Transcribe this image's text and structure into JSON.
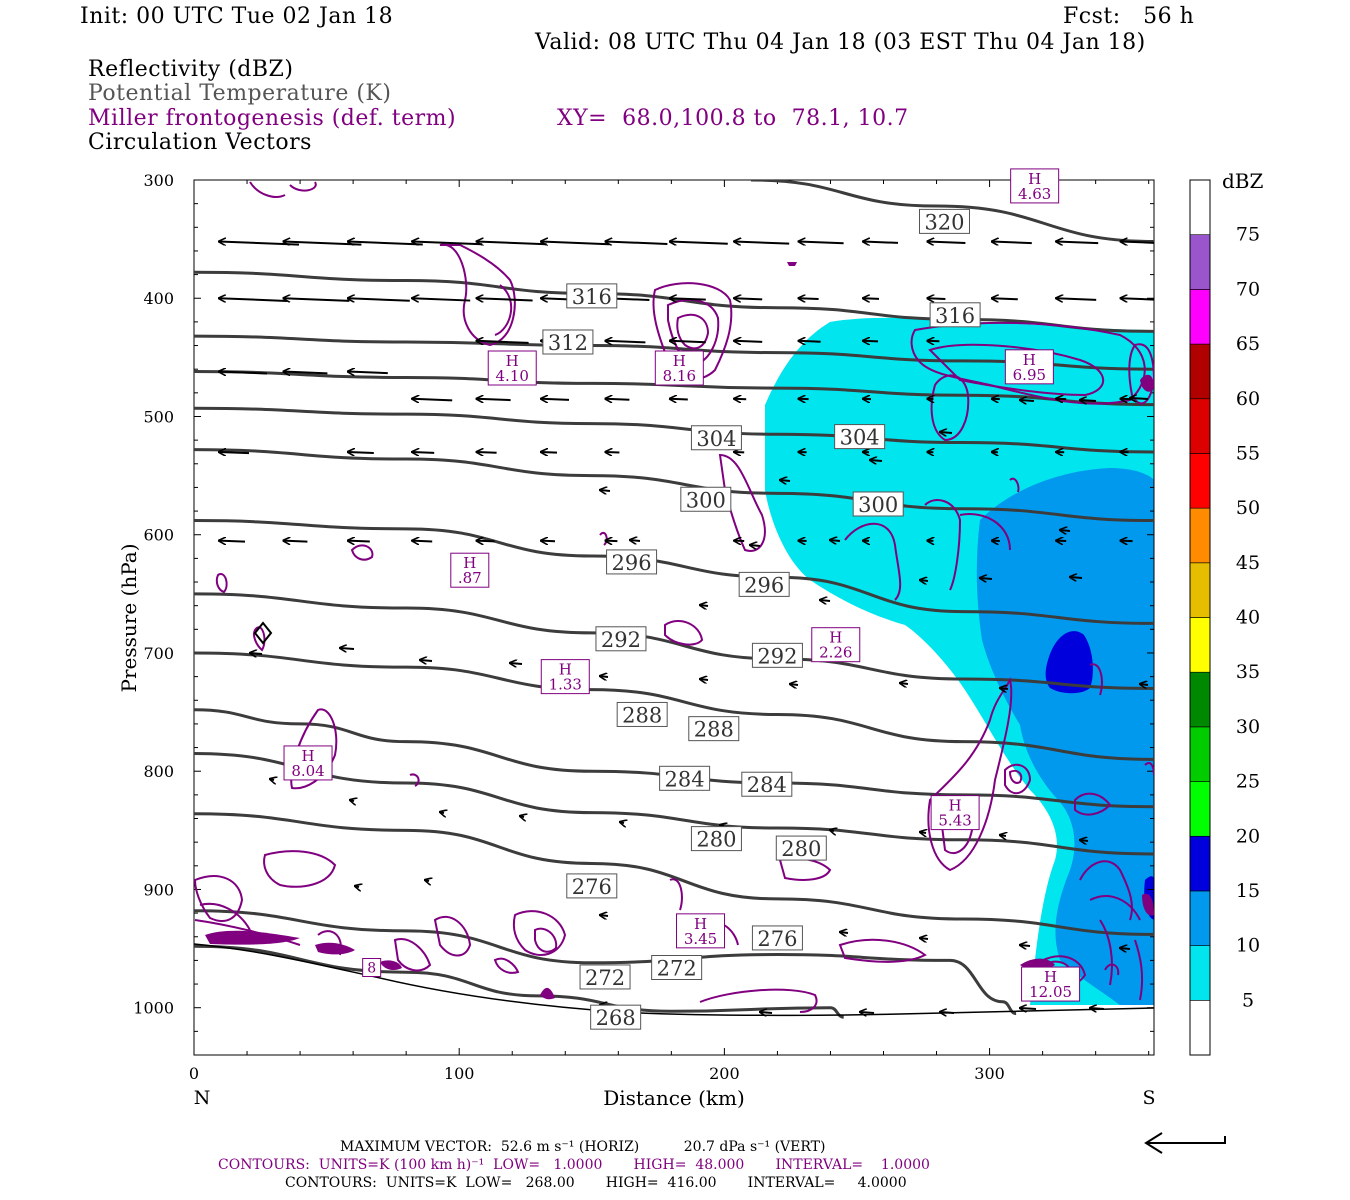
{
  "header": {
    "init": "Init: 00 UTC Tue 02 Jan 18",
    "fcst": "Fcst:   56 h",
    "valid": "Valid: 08 UTC Thu 04 Jan 18 (03 EST Thu 04 Jan 18)"
  },
  "legend_text": {
    "reflectivity": "Reflectivity (dBZ)",
    "theta": "Potential Temperature (K)",
    "miller": "Miller frontogenesis (def. term)",
    "xy": "XY=  68.0,100.8 to  78.1, 10.7",
    "circulation": "Circulation Vectors"
  },
  "colors": {
    "purple": "#800080",
    "gray_text": "#555555",
    "theta_line": "#3c3c3c",
    "refl_5": "#00E5EE",
    "refl_10": "#0099EE",
    "refl_15": "#0000DD"
  },
  "chart_data": {
    "type": "cross-section",
    "xlabel": "Distance (km)",
    "ylabel": "Pressure (hPa)",
    "xlim": [
      0,
      362
    ],
    "ylim": [
      1040,
      300
    ],
    "x_ticks": [
      0,
      100,
      200,
      300
    ],
    "y_ticks": [
      300,
      400,
      500,
      600,
      700,
      800,
      900,
      1000
    ],
    "left_end_label": "N",
    "right_end_label": "S",
    "colorbar": {
      "title": "dBZ",
      "levels": [
        5,
        10,
        15,
        20,
        25,
        30,
        35,
        40,
        45,
        50,
        55,
        60,
        65,
        70,
        75
      ],
      "colors": [
        "#ffffff",
        "#00E5EE",
        "#0099EE",
        "#0000DD",
        "#00FF00",
        "#00CC00",
        "#008800",
        "#FFFF00",
        "#E5BE00",
        "#FF8C00",
        "#FF0000",
        "#DD0000",
        "#B00000",
        "#FF00FF",
        "#9955CC",
        "#ffffff"
      ]
    },
    "theta_label_values": [
      "320",
      "316",
      "316",
      "312",
      "304",
      "304",
      "300",
      "300",
      "296",
      "296",
      "292",
      "292",
      "288",
      "288",
      "284",
      "284",
      "280",
      "280",
      "276",
      "276",
      "272",
      "272",
      "268"
    ],
    "theta_contours": [
      {
        "theta": 320,
        "points": [
          [
            210,
            300
          ],
          [
            280,
            322
          ],
          [
            362,
            352
          ]
        ]
      },
      {
        "theta": 316,
        "points": [
          [
            0,
            378
          ],
          [
            80,
            385
          ],
          [
            150,
            396
          ],
          [
            220,
            408
          ],
          [
            290,
            418
          ],
          [
            362,
            428
          ]
        ]
      },
      {
        "theta": 312,
        "points": [
          [
            0,
            432
          ],
          [
            80,
            437
          ],
          [
            150,
            440
          ],
          [
            220,
            446
          ],
          [
            290,
            453
          ],
          [
            362,
            460
          ]
        ]
      },
      {
        "theta": 308,
        "points": [
          [
            0,
            462
          ],
          [
            80,
            467
          ],
          [
            150,
            472
          ],
          [
            220,
            476
          ],
          [
            290,
            482
          ],
          [
            362,
            490
          ]
        ]
      },
      {
        "theta": 304,
        "points": [
          [
            0,
            493
          ],
          [
            80,
            498
          ],
          [
            150,
            506
          ],
          [
            220,
            515
          ],
          [
            290,
            522
          ],
          [
            362,
            530
          ]
        ]
      },
      {
        "theta": 300,
        "points": [
          [
            0,
            528
          ],
          [
            80,
            536
          ],
          [
            150,
            550
          ],
          [
            220,
            565
          ],
          [
            290,
            578
          ],
          [
            362,
            588
          ]
        ]
      },
      {
        "theta": 296,
        "points": [
          [
            0,
            588
          ],
          [
            80,
            595
          ],
          [
            150,
            618
          ],
          [
            220,
            636
          ],
          [
            290,
            665
          ],
          [
            362,
            675
          ]
        ]
      },
      {
        "theta": 292,
        "points": [
          [
            0,
            650
          ],
          [
            80,
            662
          ],
          [
            150,
            683
          ],
          [
            220,
            705
          ],
          [
            290,
            722
          ],
          [
            362,
            730
          ]
        ]
      },
      {
        "theta": 288,
        "points": [
          [
            0,
            700
          ],
          [
            80,
            712
          ],
          [
            150,
            731
          ],
          [
            220,
            752
          ],
          [
            290,
            775
          ],
          [
            362,
            790
          ]
        ]
      },
      {
        "theta": 284,
        "points": [
          [
            0,
            748
          ],
          [
            40,
            760
          ],
          [
            80,
            775
          ],
          [
            150,
            800
          ],
          [
            220,
            810
          ],
          [
            290,
            820
          ],
          [
            362,
            830
          ]
        ]
      },
      {
        "theta": 280,
        "points": [
          [
            0,
            785
          ],
          [
            80,
            810
          ],
          [
            150,
            835
          ],
          [
            220,
            848
          ],
          [
            290,
            858
          ],
          [
            362,
            870
          ]
        ]
      },
      {
        "theta": 276,
        "points": [
          [
            0,
            836
          ],
          [
            80,
            850
          ],
          [
            150,
            878
          ],
          [
            220,
            908
          ],
          [
            290,
            925
          ],
          [
            362,
            938
          ]
        ]
      },
      {
        "theta": 272,
        "points": [
          [
            0,
            918
          ],
          [
            80,
            935
          ],
          [
            150,
            962
          ],
          [
            220,
            955
          ],
          [
            285,
            960
          ],
          [
            305,
            995
          ],
          [
            310,
            1005
          ]
        ]
      },
      {
        "theta": 268,
        "points": [
          [
            0,
            948
          ],
          [
            80,
            970
          ],
          [
            130,
            990
          ],
          [
            180,
            1003
          ],
          [
            240,
            1000
          ],
          [
            245,
            1008
          ]
        ]
      }
    ],
    "theta_labels": [
      {
        "text": "320",
        "x": 283,
        "p": 335
      },
      {
        "text": "316",
        "x": 150,
        "p": 398
      },
      {
        "text": "316",
        "x": 287,
        "p": 414
      },
      {
        "text": "312",
        "x": 141,
        "p": 437
      },
      {
        "text": "304",
        "x": 197,
        "p": 518
      },
      {
        "text": "304",
        "x": 251,
        "p": 517
      },
      {
        "text": "300",
        "x": 193,
        "p": 570
      },
      {
        "text": "300",
        "x": 258,
        "p": 574
      },
      {
        "text": "296",
        "x": 165,
        "p": 623
      },
      {
        "text": "296",
        "x": 215,
        "p": 642
      },
      {
        "text": "292",
        "x": 161,
        "p": 688
      },
      {
        "text": "292",
        "x": 220,
        "p": 702
      },
      {
        "text": "288",
        "x": 169,
        "p": 752
      },
      {
        "text": "288",
        "x": 196,
        "p": 764
      },
      {
        "text": "284",
        "x": 185,
        "p": 806
      },
      {
        "text": "284",
        "x": 216,
        "p": 811
      },
      {
        "text": "280",
        "x": 197,
        "p": 857
      },
      {
        "text": "280",
        "x": 229,
        "p": 865
      },
      {
        "text": "276",
        "x": 150,
        "p": 897
      },
      {
        "text": "276",
        "x": 220,
        "p": 941
      },
      {
        "text": "272",
        "x": 155,
        "p": 974
      },
      {
        "text": "272",
        "x": 182,
        "p": 966
      },
      {
        "text": "268",
        "x": 159,
        "p": 1008
      }
    ],
    "miller_maxima": [
      {
        "label": "H",
        "value": "4.63",
        "x": 317,
        "p": 305
      },
      {
        "label": "H",
        "value": "4.10",
        "x": 120,
        "p": 459
      },
      {
        "label": "H",
        "value": "8.16",
        "x": 183,
        "p": 459
      },
      {
        "label": "H",
        "value": "6.95",
        "x": 315,
        "p": 458
      },
      {
        "label": "H",
        "value": ".87",
        "x": 104,
        "p": 630
      },
      {
        "label": "H",
        "value": "2.26",
        "x": 242,
        "p": 693
      },
      {
        "label": "H",
        "value": "1.33",
        "x": 140,
        "p": 720
      },
      {
        "label": "H",
        "value": "8.04",
        "x": 43,
        "p": 793
      },
      {
        "label": "H",
        "value": "5.43",
        "x": 287,
        "p": 835
      },
      {
        "label": "H",
        "value": "3.45",
        "x": 191,
        "p": 935
      },
      {
        "label": "H",
        "value": "12.05",
        "x": 323,
        "p": 980
      },
      {
        "label": "",
        "value": "8",
        "x": 67,
        "p": 966
      }
    ]
  },
  "footer": {
    "max_vector": "MAXIMUM VECTOR:  52.6 m s⁻¹ (HORIZ)          20.7 dPa s⁻¹ (VERT)",
    "contours1": "CONTOURS:  UNITS=K (100 km h)⁻¹  LOW=   1.0000       HIGH=  48.000       INTERVAL=    1.0000",
    "contours2": "CONTOURS:  UNITS=K  LOW=   268.00       HIGH=  416.00       INTERVAL=     4.0000"
  }
}
